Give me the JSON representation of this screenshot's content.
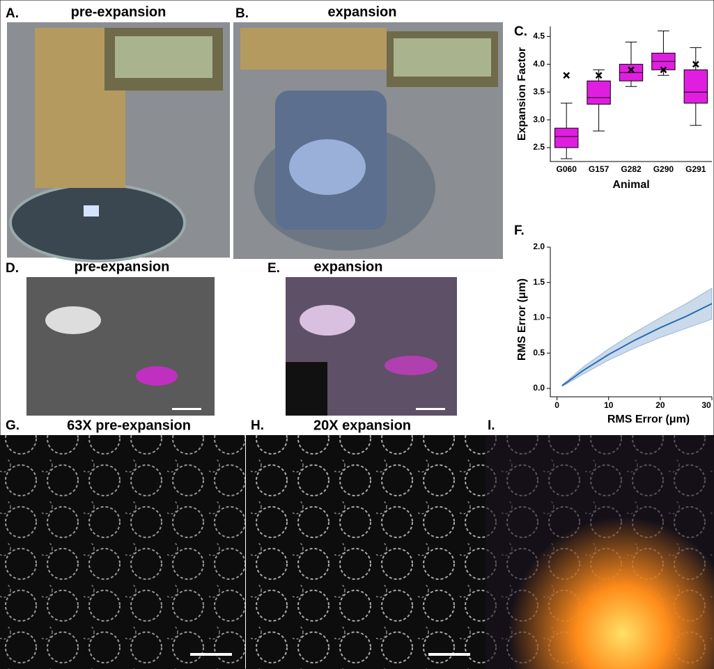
{
  "panels": [
    {
      "label": "A.",
      "title": "pre-expansion"
    },
    {
      "label": "B.",
      "title": "expansion"
    },
    {
      "label": "C."
    },
    {
      "label": "D.",
      "title": "pre-expansion"
    },
    {
      "label": "E.",
      "title": "expansion"
    },
    {
      "label": "F."
    },
    {
      "label": "G.",
      "title": "63X pre-expansion"
    },
    {
      "label": "H.",
      "title": "20X expansion"
    },
    {
      "label": "I."
    }
  ],
  "chart_data": [
    {
      "type": "box",
      "ylabel": "Expansion Factor",
      "xlabel": "Animal",
      "color": "#e01ee0",
      "categories": [
        "G060",
        "G157",
        "G282",
        "G290",
        "G291"
      ],
      "boxes": [
        {
          "low": 2.3,
          "q1": 2.5,
          "median": 2.7,
          "q3": 2.85,
          "high": 3.3,
          "mean": 3.8
        },
        {
          "low": 2.8,
          "q1": 3.28,
          "median": 3.4,
          "q3": 3.7,
          "high": 3.9,
          "mean": 3.8
        },
        {
          "low": 3.6,
          "q1": 3.7,
          "median": 3.85,
          "q3": 4.0,
          "high": 4.4,
          "mean": 3.9
        },
        {
          "low": 3.8,
          "q1": 3.9,
          "median": 4.05,
          "q3": 4.2,
          "high": 4.6,
          "mean": 3.9
        },
        {
          "low": 2.9,
          "q1": 3.3,
          "median": 3.5,
          "q3": 3.9,
          "high": 4.3,
          "mean": 4.0
        }
      ],
      "ylim": [
        2.25,
        4.68
      ],
      "yticks": [
        2.5,
        {
          "value": 3,
          "label": "3.0"
        },
        3.5,
        {
          "value": 4,
          "label": "4.0"
        },
        4.5
      ]
    },
    {
      "type": "line",
      "xlabel": "RMS Error (μm)",
      "ylabel": "RMS Error (μm)",
      "color": "#2b6cb0",
      "x": [
        1,
        2,
        5,
        10,
        15,
        20,
        25,
        30
      ],
      "values": [
        0.04,
        0.09,
        0.25,
        0.48,
        0.68,
        0.86,
        1.02,
        1.2
      ],
      "lower": [
        0.03,
        0.07,
        0.2,
        0.4,
        0.57,
        0.72,
        0.85,
        0.98
      ],
      "upper": [
        0.05,
        0.11,
        0.3,
        0.56,
        0.79,
        1.0,
        1.2,
        1.42
      ],
      "xlim": [
        -1.3,
        30
      ],
      "xticks": [
        0,
        10,
        20,
        30
      ],
      "ylim": [
        -0.05,
        2.0
      ],
      "yticks": [
        {
          "value": 0,
          "label": "0.0"
        },
        0.5,
        {
          "value": 1,
          "label": "1.0"
        },
        1.5,
        {
          "value": 2,
          "label": "2.0"
        }
      ]
    }
  ]
}
